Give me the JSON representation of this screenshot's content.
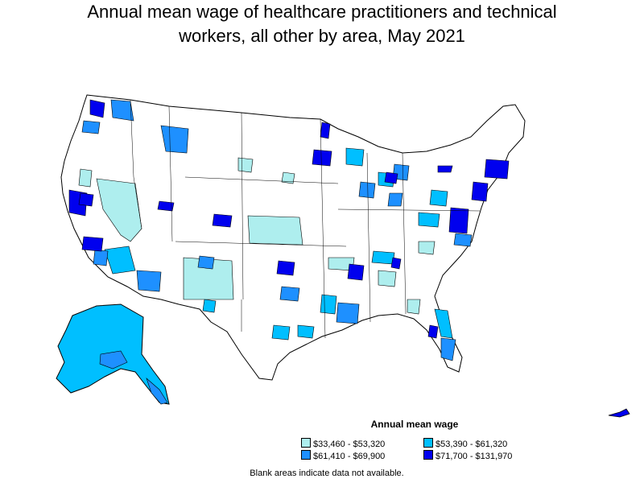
{
  "title": {
    "line1": "Annual mean wage of healthcare practitioners and technical",
    "line2": "workers, all other by area, May 2021"
  },
  "legend": {
    "title": "Annual mean wage",
    "items": [
      {
        "label": "$33,460 - $53,320",
        "color": "#aeeeee"
      },
      {
        "label": "$53,390 - $61,320",
        "color": "#00bfff"
      },
      {
        "label": "$61,410 - $69,900",
        "color": "#1e90ff"
      },
      {
        "label": "$71,700 - $131,970",
        "color": "#0000ee"
      }
    ]
  },
  "footnote": "Blank areas indicate data not available.",
  "colors": {
    "outline": "#000000",
    "no_data": "#ffffff"
  }
}
